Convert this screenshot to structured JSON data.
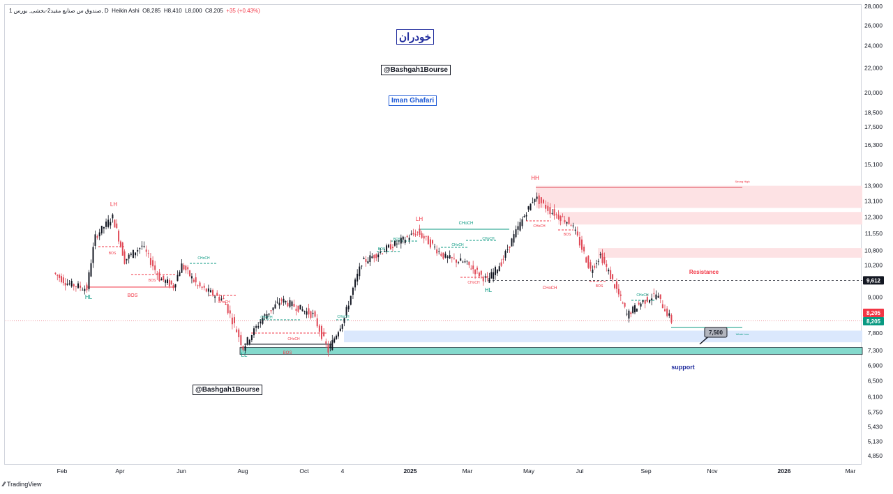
{
  "header": {
    "symbol": "1 صندوق س صنایع مفید2-بخشی, بورس, D",
    "chart_style": "Heikin Ashi",
    "open_label": "O",
    "open": "8,285",
    "high_label": "H",
    "high": "8,410",
    "low_label": "L",
    "low": "8,000",
    "close_label": "C",
    "close": "8,205",
    "change": "+35 (+0.43%)"
  },
  "watermark": {
    "title": "خودران",
    "handle_top": "@Bashgah1Bourse",
    "author": "Iman Ghafari",
    "handle_bottom": "@Bashgah1Bourse"
  },
  "branding": {
    "logo": "TradingView"
  },
  "colors": {
    "up": "#131722",
    "down": "#e04957",
    "bull_structure": "#089981",
    "bear_structure": "#f23645",
    "zone_red": "#fde2e4",
    "zone_blue": "#dbe8fd",
    "zone_teal": "#84d9cc",
    "annot_blue": "#1e2a9c"
  },
  "price_tags": {
    "current": "8,205",
    "current2": "8,205",
    "level": "9,612",
    "target": "7,500"
  },
  "chart_data": {
    "type": "candlestick",
    "style": "Heikin Ashi",
    "title": "",
    "xlabel": "",
    "ylabel": "",
    "y_scale": "log",
    "ylim": [
      4600,
      28000
    ],
    "y_ticks": [
      "28,000",
      "26,000",
      "24,000",
      "22,000",
      "20,000",
      "18,500",
      "17,500",
      "16,300",
      "15,100",
      "13,900",
      "13,100",
      "12,300",
      "11,550",
      "10,800",
      "10,200",
      "9,000",
      "7,800",
      "7,300",
      "6,900",
      "6,500",
      "6,100",
      "5,750",
      "5,430",
      "5,130",
      "4,850"
    ],
    "x_ticks": [
      "Feb",
      "Apr",
      "Jun",
      "Aug",
      "Oct",
      "4",
      "2025",
      "Mar",
      "May",
      "Jul",
      "Sep",
      "Nov",
      "2026",
      "Mar"
    ],
    "grid": false,
    "price_path": [
      {
        "x": "Jan-24",
        "y": 9900
      },
      {
        "x": "Feb-24",
        "y": 9500
      },
      {
        "x": "Mar-24",
        "y": 9300
      },
      {
        "x": "Mar-24",
        "y": 11400
      },
      {
        "x": "Mar-24",
        "y": 12300
      },
      {
        "x": "Apr-24",
        "y": 10400
      },
      {
        "x": "Apr-24",
        "y": 11000
      },
      {
        "x": "May-24",
        "y": 9700
      },
      {
        "x": "May-24",
        "y": 9400
      },
      {
        "x": "Jun-24",
        "y": 10200
      },
      {
        "x": "Jun-24",
        "y": 9400
      },
      {
        "x": "Jul-24",
        "y": 8900
      },
      {
        "x": "Aug-24",
        "y": 7400
      },
      {
        "x": "Sep-24",
        "y": 8300
      },
      {
        "x": "Sep-24",
        "y": 8900
      },
      {
        "x": "Oct-24",
        "y": 8400
      },
      {
        "x": "Oct-24",
        "y": 7300
      },
      {
        "x": "Nov-24",
        "y": 8300
      },
      {
        "x": "Dec-24",
        "y": 10300
      },
      {
        "x": "Jan-25",
        "y": 11600
      },
      {
        "x": "Feb-25",
        "y": 10500
      },
      {
        "x": "Mar-25",
        "y": 10300
      },
      {
        "x": "Mar-25",
        "y": 9600
      },
      {
        "x": "Apr-25",
        "y": 10300
      },
      {
        "x": "May-25",
        "y": 13300
      },
      {
        "x": "May-25",
        "y": 12600
      },
      {
        "x": "Jun-25",
        "y": 12000
      },
      {
        "x": "Jul-25",
        "y": 10000
      },
      {
        "x": "Jul-25",
        "y": 10600
      },
      {
        "x": "Aug-25",
        "y": 8400
      },
      {
        "x": "Sep-25",
        "y": 8800
      },
      {
        "x": "Sep-25",
        "y": 9100
      },
      {
        "x": "Sep-25",
        "y": 8205
      }
    ],
    "annotations": [
      "LH",
      "HL",
      "BOS",
      "CHoCH",
      "LL",
      "HH",
      "Strong High",
      "Weak Low",
      "Resistance",
      "support"
    ],
    "zones": [
      {
        "name": "resistance-1",
        "from": 12750,
        "to": 13900
      },
      {
        "name": "resistance-2",
        "from": 11950,
        "to": 12550
      },
      {
        "name": "resistance-3",
        "from": 10500,
        "to": 10900
      },
      {
        "name": "demand-zone",
        "from": 7550,
        "to": 7900
      },
      {
        "name": "support-zone",
        "from": 7200,
        "to": 7400
      }
    ],
    "levels": [
      {
        "name": "resistance-line",
        "y": 9612
      },
      {
        "name": "current-price",
        "y": 8205
      },
      {
        "name": "target",
        "y": 7500
      }
    ]
  }
}
